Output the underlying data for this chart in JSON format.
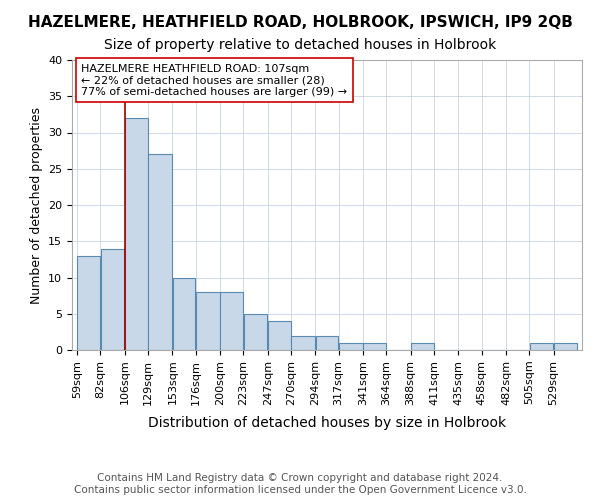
{
  "title": "HAZELMERE, HEATHFIELD ROAD, HOLBROOK, IPSWICH, IP9 2QB",
  "subtitle": "Size of property relative to detached houses in Holbrook",
  "xlabel": "Distribution of detached houses by size in Holbrook",
  "ylabel": "Number of detached properties",
  "bin_labels": [
    "59sqm",
    "82sqm",
    "106sqm",
    "129sqm",
    "153sqm",
    "176sqm",
    "200sqm",
    "223sqm",
    "247sqm",
    "270sqm",
    "294sqm",
    "317sqm",
    "341sqm",
    "364sqm",
    "388sqm",
    "411sqm",
    "435sqm",
    "458sqm",
    "482sqm",
    "505sqm",
    "529sqm"
  ],
  "bin_edges": [
    59,
    82,
    106,
    129,
    153,
    176,
    200,
    223,
    247,
    270,
    294,
    317,
    341,
    364,
    388,
    411,
    435,
    458,
    482,
    505,
    529,
    552
  ],
  "bar_heights": [
    13,
    14,
    32,
    27,
    10,
    8,
    8,
    5,
    4,
    2,
    2,
    1,
    1,
    0,
    1,
    0,
    0,
    0,
    0,
    1,
    1
  ],
  "bar_color": "#c8d8e8",
  "bar_edge_color": "#5a8ab0",
  "property_line_x": 106,
  "property_line_color": "#aa0000",
  "annotation_line1": "HAZELMERE HEATHFIELD ROAD: 107sqm",
  "annotation_line2": "← 22% of detached houses are smaller (28)",
  "annotation_line3": "77% of semi-detached houses are larger (99) →",
  "annotation_box_color": "#ffffff",
  "annotation_box_edge": "#cc0000",
  "ylim": [
    0,
    40
  ],
  "yticks": [
    0,
    5,
    10,
    15,
    20,
    25,
    30,
    35,
    40
  ],
  "footer_text": "Contains HM Land Registry data © Crown copyright and database right 2024.\nContains public sector information licensed under the Open Government Licence v3.0.",
  "title_fontsize": 11,
  "subtitle_fontsize": 10,
  "xlabel_fontsize": 10,
  "ylabel_fontsize": 9,
  "tick_fontsize": 8,
  "footer_fontsize": 7.5,
  "annot_fontsize": 8
}
